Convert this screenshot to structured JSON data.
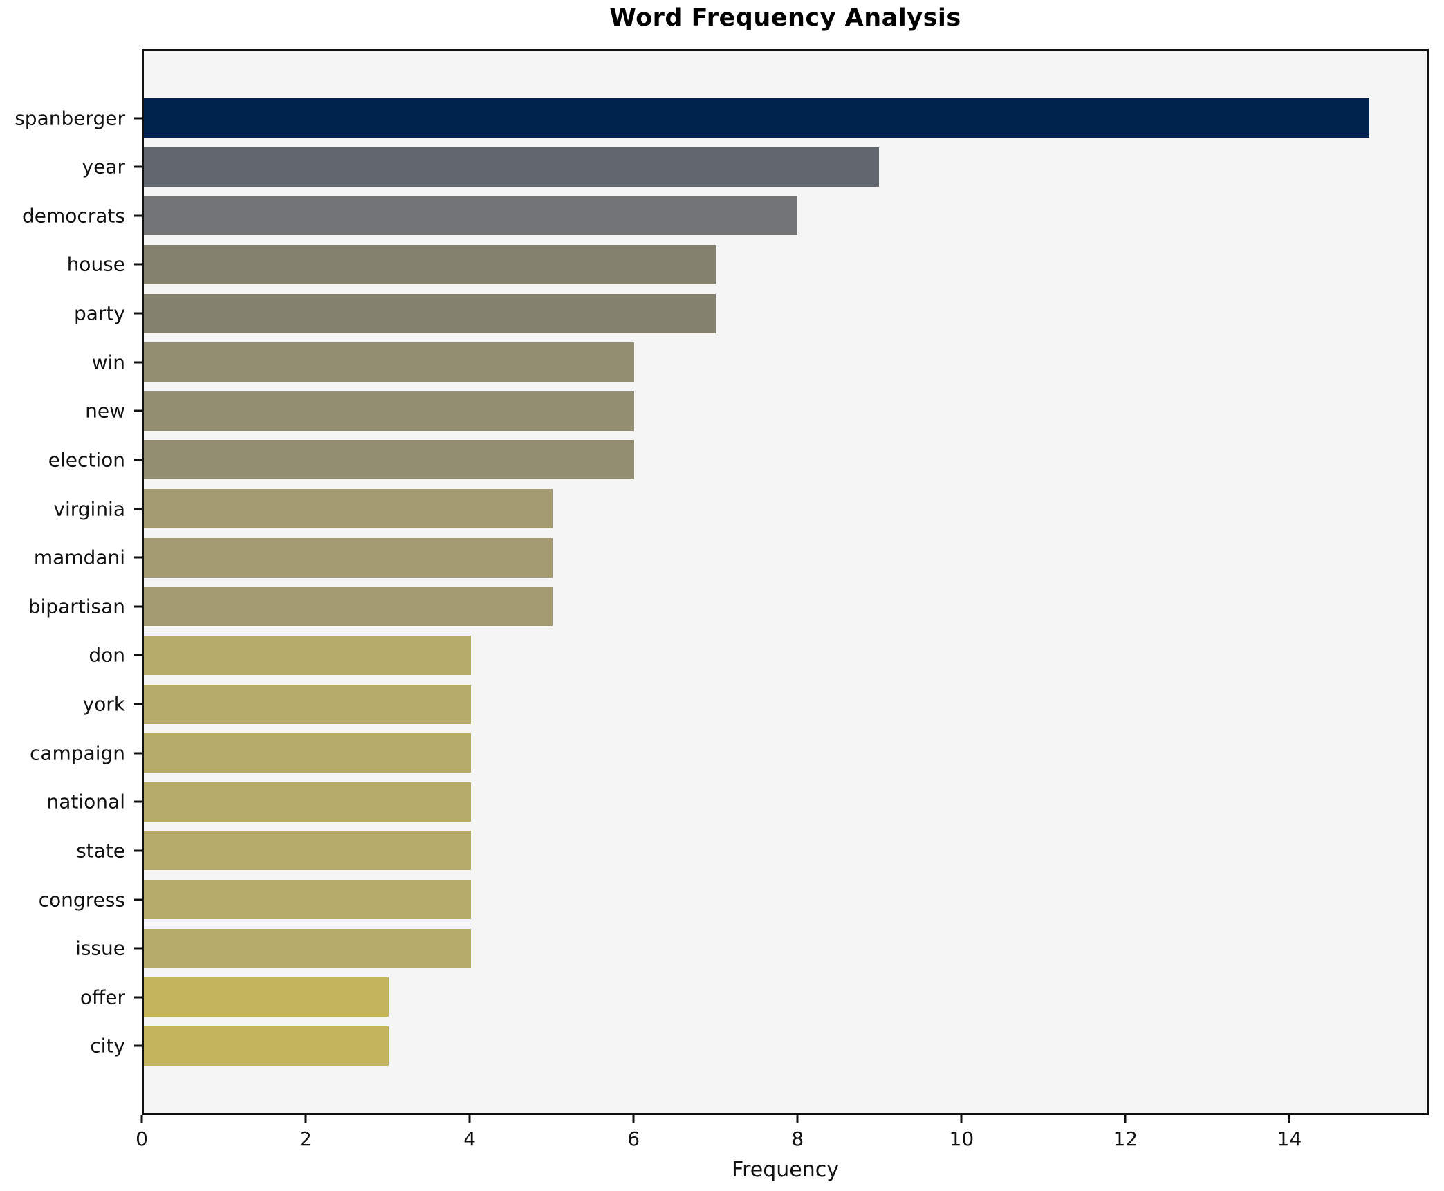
{
  "title": "Word Frequency Analysis",
  "chart_data": {
    "type": "bar",
    "orientation": "horizontal",
    "title": "Word Frequency Analysis",
    "xlabel": "Frequency",
    "ylabel": "",
    "categories": [
      "spanberger",
      "year",
      "democrats",
      "house",
      "party",
      "win",
      "new",
      "election",
      "virginia",
      "mamdani",
      "bipartisan",
      "don",
      "york",
      "campaign",
      "national",
      "state",
      "congress",
      "issue",
      "offer",
      "city"
    ],
    "values": [
      15,
      9,
      8,
      7,
      7,
      6,
      6,
      6,
      5,
      5,
      5,
      4,
      4,
      4,
      4,
      4,
      4,
      4,
      3,
      3
    ],
    "bar_colors": [
      "#00234e",
      "#62666f",
      "#727476",
      "#84816f",
      "#84816f",
      "#948e72",
      "#948e72",
      "#948e72",
      "#a49b72",
      "#a49b72",
      "#a49b72",
      "#b5aa68",
      "#b5aa68",
      "#b5aa68",
      "#b5aa68",
      "#b5aa68",
      "#b5aa68",
      "#b5aa68",
      "#c3b45d",
      "#c3b45d"
    ],
    "xticks": [
      0,
      2,
      4,
      6,
      8,
      10,
      12,
      14
    ],
    "xlim": [
      0,
      15.7
    ],
    "grid": false,
    "legend": null,
    "plot_background": "#f5f5f6",
    "figure_background": "#ffffff",
    "spine_color": "#111111"
  }
}
